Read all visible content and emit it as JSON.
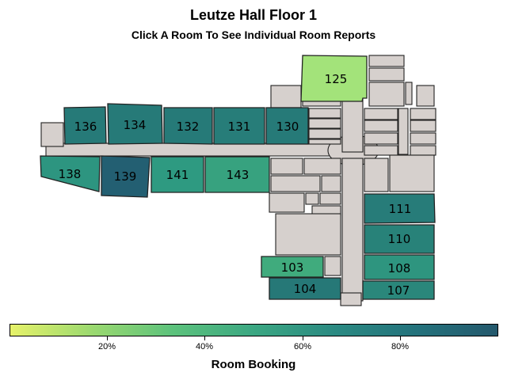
{
  "header": {
    "title": "Leutze Hall Floor 1",
    "subtitle": "Click A Room To See Individual Room Reports"
  },
  "colors": {
    "structure": "#d6d0cd",
    "outline": "#222222",
    "scale": [
      "#e6f26a",
      "#9bd96f",
      "#5cc27c",
      "#3ba782",
      "#2b8a82",
      "#24727c",
      "#24586c"
    ]
  },
  "legend": {
    "title": "Room Booking",
    "ticks": [
      "20%",
      "40%",
      "60%",
      "80%"
    ]
  },
  "rooms": [
    {
      "id": "room-125",
      "label": "125",
      "value": 0.05,
      "color": "#a3e37a"
    },
    {
      "id": "room-136",
      "label": "136",
      "value": 0.9,
      "color": "#267a78"
    },
    {
      "id": "room-134",
      "label": "134",
      "value": 0.9,
      "color": "#267a78"
    },
    {
      "id": "room-132",
      "label": "132",
      "value": 0.9,
      "color": "#267a78"
    },
    {
      "id": "room-131",
      "label": "131",
      "value": 0.88,
      "color": "#277d79"
    },
    {
      "id": "room-130",
      "label": "130",
      "value": 0.88,
      "color": "#267a78"
    },
    {
      "id": "room-138",
      "label": "138",
      "value": 0.74,
      "color": "#2d9580"
    },
    {
      "id": "room-139",
      "label": "139",
      "value": 1.0,
      "color": "#235f72"
    },
    {
      "id": "room-141",
      "label": "141",
      "value": 0.66,
      "color": "#2e9a81"
    },
    {
      "id": "room-143",
      "label": "143",
      "value": 0.58,
      "color": "#37a27f"
    },
    {
      "id": "room-111",
      "label": "111",
      "value": 0.88,
      "color": "#277c79"
    },
    {
      "id": "room-110",
      "label": "110",
      "value": 0.86,
      "color": "#288279"
    },
    {
      "id": "room-108",
      "label": "108",
      "value": 0.72,
      "color": "#2e957f"
    },
    {
      "id": "room-103",
      "label": "103",
      "value": 0.5,
      "color": "#40ab7d"
    },
    {
      "id": "room-104",
      "label": "104",
      "value": 0.9,
      "color": "#267877"
    },
    {
      "id": "room-107",
      "label": "107",
      "value": 0.82,
      "color": "#2a877b"
    }
  ]
}
